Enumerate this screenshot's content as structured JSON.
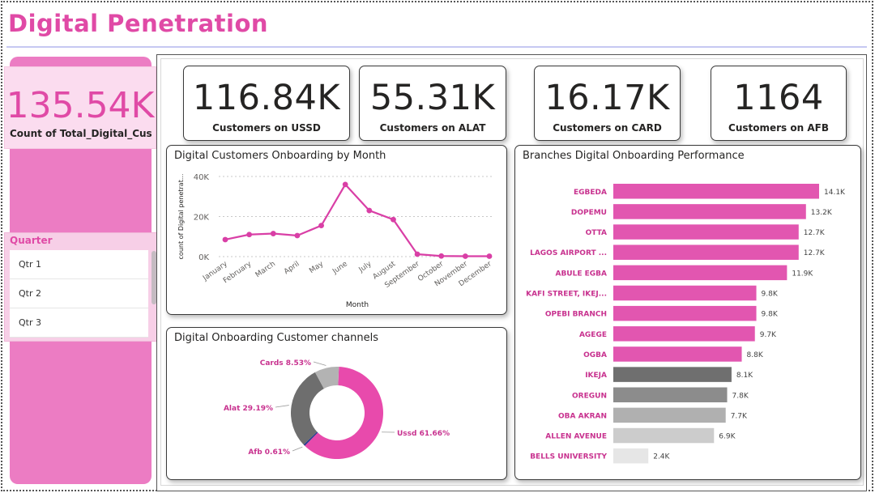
{
  "header": {
    "title": "Digital Penetration"
  },
  "kpi_total": {
    "value": "135.54K",
    "label": "Count of Total_Digital_Cus..."
  },
  "slicer": {
    "title": "Quarter",
    "items": [
      "Qtr 1",
      "Qtr 2",
      "Qtr 3"
    ]
  },
  "kpis": [
    {
      "value": "116.84K",
      "label": "Customers on USSD"
    },
    {
      "value": "55.31K",
      "label": "Customers on ALAT"
    },
    {
      "value": "16.17K",
      "label": "Customers on CARD"
    },
    {
      "value": "1164",
      "label": "Customers on AFB"
    }
  ],
  "colors": {
    "accent": "#e04aa6",
    "sidebar": "#ec7cc3",
    "line": "#d93fa6",
    "ussd": "#e84aac",
    "alat": "#6e6e6e",
    "cards": "#b3b3b3",
    "afb": "#2a3b8f"
  },
  "chart_data": [
    {
      "type": "line",
      "title": "Digital Customers Onboarding by Month",
      "xlabel": "Month",
      "ylabel": "count of Digital penetrat...",
      "categories": [
        "January",
        "February",
        "March",
        "April",
        "May",
        "June",
        "July",
        "August",
        "September",
        "October",
        "November",
        "December"
      ],
      "values": [
        8500,
        11000,
        11500,
        10500,
        15500,
        36000,
        23000,
        18500,
        1200,
        300,
        200,
        200
      ],
      "yticks": [
        "0K",
        "20K",
        "40K"
      ],
      "ylim": [
        0,
        40000
      ],
      "grid": true
    },
    {
      "type": "pie",
      "title": "Digital Onboarding Customer channels",
      "slices": [
        {
          "name": "Ussd",
          "percent": 61.66,
          "label": "Ussd 61.66%"
        },
        {
          "name": "Afb",
          "percent": 0.61,
          "label": "Afb 0.61%"
        },
        {
          "name": "Alat",
          "percent": 29.19,
          "label": "Alat 29.19%"
        },
        {
          "name": "Cards",
          "percent": 8.53,
          "label": "Cards 8.53%"
        }
      ]
    },
    {
      "type": "bar",
      "orientation": "horizontal",
      "title": "Branches Digital Onboarding Performance",
      "categories": [
        "EGBEDA",
        "DOPEMU",
        "OTTA",
        "LAGOS AIRPORT ...",
        "ABULE EGBA",
        "KAFI STREET, IKEJ...",
        "OPEBI BRANCH",
        "AGEGE",
        "OGBA",
        "IKEJA",
        "OREGUN",
        "OBA AKRAN",
        "ALLEN AVENUE",
        "BELLS UNIVERSITY"
      ],
      "values": [
        14100,
        13200,
        12700,
        12700,
        11900,
        9800,
        9800,
        9700,
        8800,
        8100,
        7800,
        7700,
        6900,
        2400
      ],
      "labels": [
        "14.1K",
        "13.2K",
        "12.7K",
        "12.7K",
        "11.9K",
        "9.8K",
        "9.8K",
        "9.7K",
        "8.8K",
        "8.1K",
        "7.8K",
        "7.7K",
        "6.9K",
        "2.4K"
      ],
      "bar_colors": [
        "#e256b0",
        "#e256b0",
        "#e256b0",
        "#e256b0",
        "#e256b0",
        "#e256b0",
        "#e256b0",
        "#e256b0",
        "#e256b0",
        "#6f6f6f",
        "#8c8c8c",
        "#b0b0b0",
        "#cccccc",
        "#e6e6e6"
      ]
    }
  ]
}
